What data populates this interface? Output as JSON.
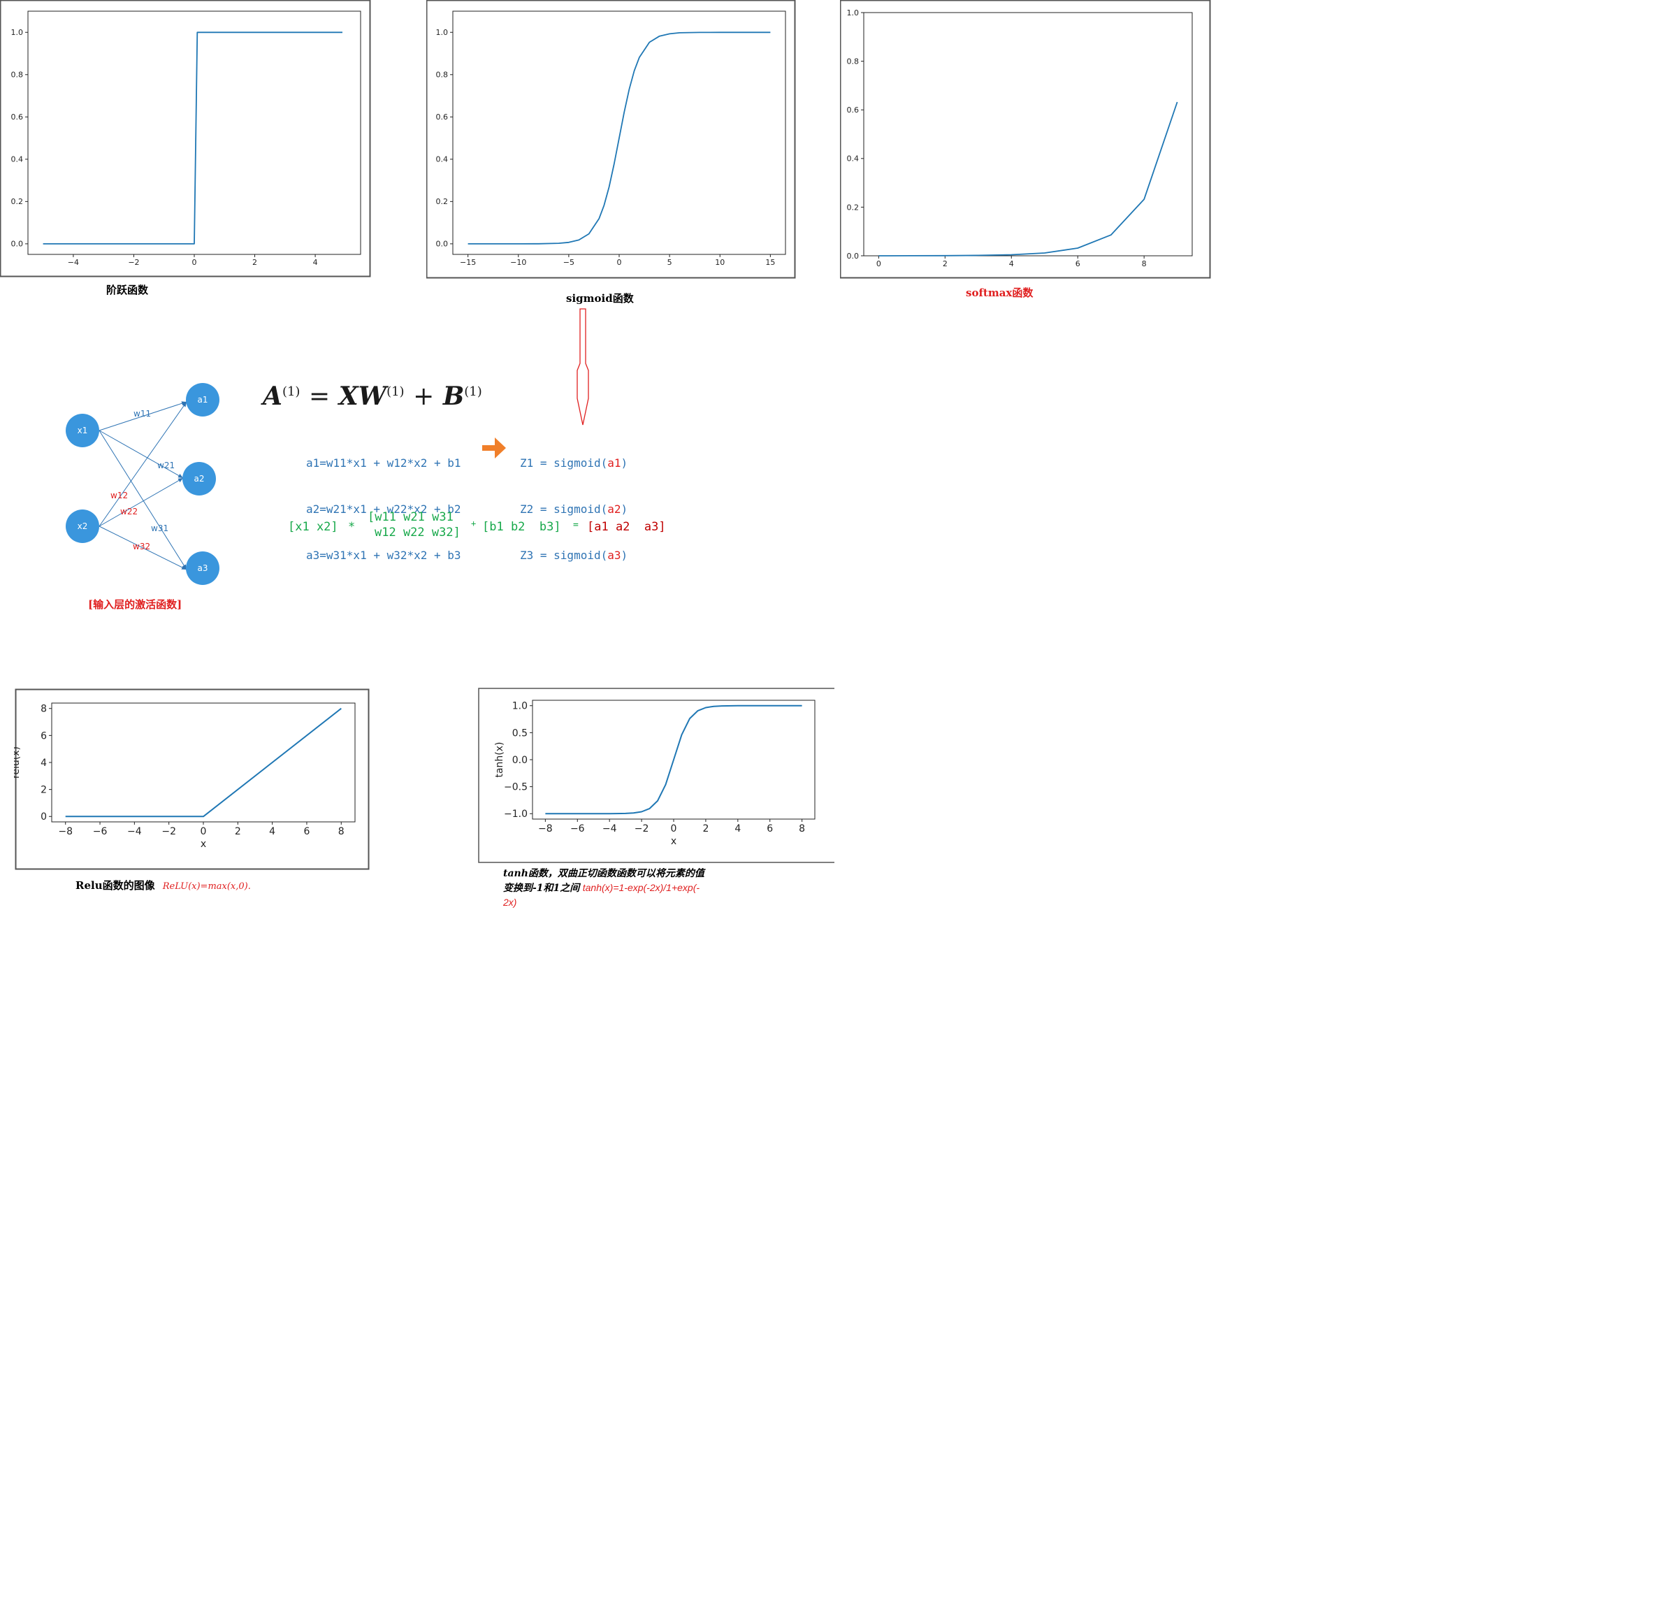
{
  "charts_text": {
    "step_caption": "阶跃函数",
    "sigmoid_caption": "sigmoid函数",
    "softmax_caption": "softmax函数",
    "relu_caption": "Relu函数的图像",
    "relu_formula": "ReLU(x)=max(x,0).",
    "tanh_caption_line1": "tanh函数，双曲正切函数函数可以将元素的值",
    "tanh_caption_line2": "变换到-1和1之间",
    "tanh_formula_a": "tanh(x)=1-exp(-2x)/1+exp(-",
    "tanh_formula_b": "2x)"
  },
  "network": {
    "nodes": {
      "x1": "x1",
      "x2": "x2",
      "a1": "a1",
      "a2": "a2",
      "a3": "a3"
    },
    "weights": {
      "w11": "w11",
      "w21": "w21",
      "w31": "w31",
      "w12": "w12",
      "w22": "w22",
      "w32": "w32"
    },
    "caption": "[输入层的激活函数]"
  },
  "equations": {
    "matrix_formula": {
      "A": "A",
      "sup": "(1)",
      "eq": "=",
      "XW": "XW",
      "plus": "+",
      "B": "B"
    },
    "lines": [
      "a1=w11*x1 + w12*x2 + b1",
      "a2=w21*x1 + w22*x2 + b2",
      "a3=w31*x1 + w32*x2 + b3"
    ],
    "z_prefix": [
      "Z1 = sigmoid(",
      "Z2 = sigmoid(",
      "Z3 = sigmoid("
    ],
    "z_arg": [
      "a1",
      "a2",
      "a3"
    ],
    "z_close": ")",
    "matrix_row": {
      "x_vec": "[x1 x2]",
      "times": "*",
      "w_row1": "[w11 w21 w31",
      "w_row2": "w12 w22 w32]",
      "plus": "+",
      "b_vec": "[b1 b2  b3]",
      "eq": "=",
      "a_vec": "[a1 a2  a3]"
    }
  },
  "colors": {
    "line": "#1f77b4",
    "node": "#3a96dd",
    "eq_blue": "#2f74b4",
    "red": "#e02020",
    "green": "#17a84a",
    "orange": "#f07f2a"
  },
  "chart_data": [
    {
      "type": "line",
      "id": "step",
      "title": "",
      "xlabel": "",
      "ylabel": "",
      "xlim": [
        -5.5,
        5.5
      ],
      "ylim": [
        -0.05,
        1.1
      ],
      "xticks": [
        -4,
        -2,
        0,
        2,
        4
      ],
      "xtick_labels": [
        "−4",
        "−2",
        "0",
        "2",
        "4"
      ],
      "yticks": [
        0.0,
        0.2,
        0.4,
        0.6,
        0.8,
        1.0
      ],
      "ytick_labels": [
        "0.0",
        "0.2",
        "0.4",
        "0.6",
        "0.8",
        "1.0"
      ],
      "series": [
        {
          "x": [
            -5.0,
            0.0,
            0.1,
            4.9
          ],
          "y": [
            0,
            0,
            1,
            1
          ]
        }
      ]
    },
    {
      "type": "line",
      "id": "sigmoid",
      "title": "",
      "xlabel": "",
      "ylabel": "",
      "xlim": [
        -16.5,
        16.5
      ],
      "ylim": [
        -0.05,
        1.1
      ],
      "xticks": [
        -15,
        -10,
        -5,
        0,
        5,
        10,
        15
      ],
      "xtick_labels": [
        "−15",
        "−10",
        "−5",
        "0",
        "5",
        "10",
        "15"
      ],
      "yticks": [
        0.0,
        0.2,
        0.4,
        0.6,
        0.8,
        1.0
      ],
      "ytick_labels": [
        "0.0",
        "0.2",
        "0.4",
        "0.6",
        "0.8",
        "1.0"
      ],
      "series": [
        {
          "x": [
            -15,
            -10,
            -8,
            -6,
            -5,
            -4,
            -3,
            -2,
            -1.5,
            -1,
            -0.5,
            0,
            0.5,
            1,
            1.5,
            2,
            3,
            4,
            5,
            6,
            8,
            10,
            15
          ],
          "y": [
            0.0,
            0.0,
            0.0003,
            0.0025,
            0.0067,
            0.018,
            0.047,
            0.119,
            0.182,
            0.269,
            0.378,
            0.5,
            0.622,
            0.731,
            0.818,
            0.881,
            0.953,
            0.982,
            0.993,
            0.998,
            0.9997,
            1.0,
            1.0
          ]
        }
      ]
    },
    {
      "type": "line",
      "id": "softmax",
      "title": "",
      "xlabel": "",
      "ylabel": "",
      "xlim": [
        -0.45,
        9.45
      ],
      "ylim": [
        0,
        1.0
      ],
      "xticks": [
        0,
        2,
        4,
        6,
        8
      ],
      "xtick_labels": [
        "0",
        "2",
        "4",
        "6",
        "8"
      ],
      "yticks": [
        0.0,
        0.2,
        0.4,
        0.6,
        0.8,
        1.0
      ],
      "ytick_labels": [
        "0.0",
        "0.2",
        "0.4",
        "0.6",
        "0.8",
        "1.0"
      ],
      "series": [
        {
          "x": [
            0,
            1,
            2,
            3,
            4,
            5,
            6,
            7,
            8,
            9
          ],
          "y": [
            0.0001,
            0.0002,
            0.0006,
            0.0016,
            0.0043,
            0.0116,
            0.0315,
            0.0856,
            0.2326,
            0.6321
          ]
        }
      ]
    },
    {
      "type": "line",
      "id": "relu",
      "title": "",
      "xlabel": "x",
      "ylabel": "relu(x)",
      "xlim": [
        -8.8,
        8.8
      ],
      "ylim": [
        -0.4,
        8.4
      ],
      "xticks": [
        -8,
        -6,
        -4,
        -2,
        0,
        2,
        4,
        6,
        8
      ],
      "xtick_labels": [
        "−8",
        "−6",
        "−4",
        "−2",
        "0",
        "2",
        "4",
        "6",
        "8"
      ],
      "yticks": [
        0,
        2,
        4,
        6,
        8
      ],
      "ytick_labels": [
        "0",
        "2",
        "4",
        "6",
        "8"
      ],
      "series": [
        {
          "x": [
            -8,
            0,
            8
          ],
          "y": [
            0,
            0,
            8
          ]
        }
      ]
    },
    {
      "type": "line",
      "id": "tanh",
      "title": "",
      "xlabel": "x",
      "ylabel": "tanh(x)",
      "xlim": [
        -8.8,
        8.8
      ],
      "ylim": [
        -1.1,
        1.1
      ],
      "xticks": [
        -8,
        -6,
        -4,
        -2,
        0,
        2,
        4,
        6,
        8
      ],
      "xtick_labels": [
        "−8",
        "−6",
        "−4",
        "−2",
        "0",
        "2",
        "4",
        "6",
        "8"
      ],
      "yticks": [
        -1.0,
        -0.5,
        0.0,
        0.5,
        1.0
      ],
      "ytick_labels": [
        "−1.0",
        "−0.5",
        "0.0",
        "0.5",
        "1.0"
      ],
      "series": [
        {
          "x": [
            -8,
            -4,
            -3,
            -2.5,
            -2,
            -1.5,
            -1,
            -0.5,
            0,
            0.5,
            1,
            1.5,
            2,
            2.5,
            3,
            4,
            8
          ],
          "y": [
            -1.0,
            -0.9993,
            -0.995,
            -0.987,
            -0.964,
            -0.905,
            -0.762,
            -0.462,
            0.0,
            0.462,
            0.762,
            0.905,
            0.964,
            0.987,
            0.995,
            0.9993,
            1.0
          ]
        }
      ]
    }
  ]
}
